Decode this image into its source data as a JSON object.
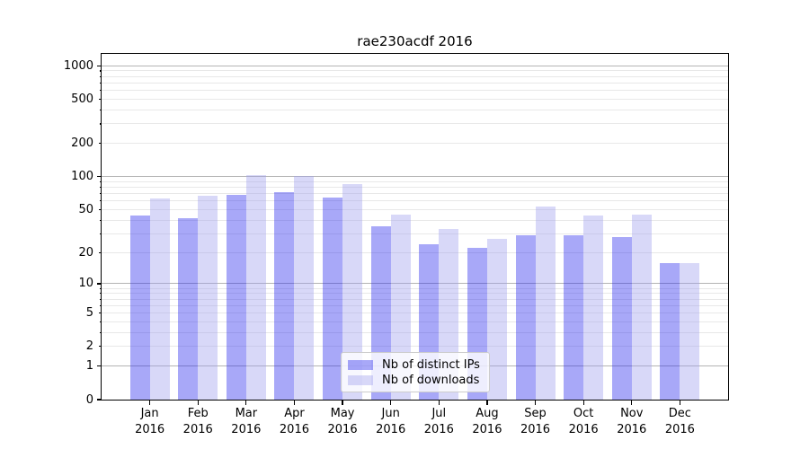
{
  "chart_data": {
    "type": "bar",
    "title": "rae230acdf 2016",
    "categories": [
      {
        "label": "Jan",
        "sub": "2016"
      },
      {
        "label": "Feb",
        "sub": "2016"
      },
      {
        "label": "Mar",
        "sub": "2016"
      },
      {
        "label": "Apr",
        "sub": "2016"
      },
      {
        "label": "May",
        "sub": "2016"
      },
      {
        "label": "Jun",
        "sub": "2016"
      },
      {
        "label": "Jul",
        "sub": "2016"
      },
      {
        "label": "Aug",
        "sub": "2016"
      },
      {
        "label": "Sep",
        "sub": "2016"
      },
      {
        "label": "Oct",
        "sub": "2016"
      },
      {
        "label": "Nov",
        "sub": "2016"
      },
      {
        "label": "Dec",
        "sub": "2016"
      }
    ],
    "series": [
      {
        "name": "Nb of distinct IPs",
        "color": "#a9a9f8",
        "fill": "rgba(38,38,238,0.4)",
        "values": [
          44,
          42,
          68,
          72,
          64,
          35,
          24,
          22,
          29,
          29,
          28,
          16
        ]
      },
      {
        "name": "Nb of downloads",
        "color": "#d8d8f8",
        "fill": "rgba(158,158,238,0.4)",
        "values": [
          63,
          67,
          104,
          102,
          85,
          45,
          33,
          27,
          53,
          44,
          45,
          16
        ]
      }
    ],
    "yticks": [
      0,
      1,
      2,
      5,
      10,
      20,
      50,
      100,
      200,
      500,
      1000
    ],
    "scale": "log1p",
    "ylim": [
      0,
      1280
    ],
    "grid": true,
    "legend_position": "lower center",
    "grid_major_color": "#b4b4b4",
    "grid_minor_color": "#e8e8e8"
  }
}
